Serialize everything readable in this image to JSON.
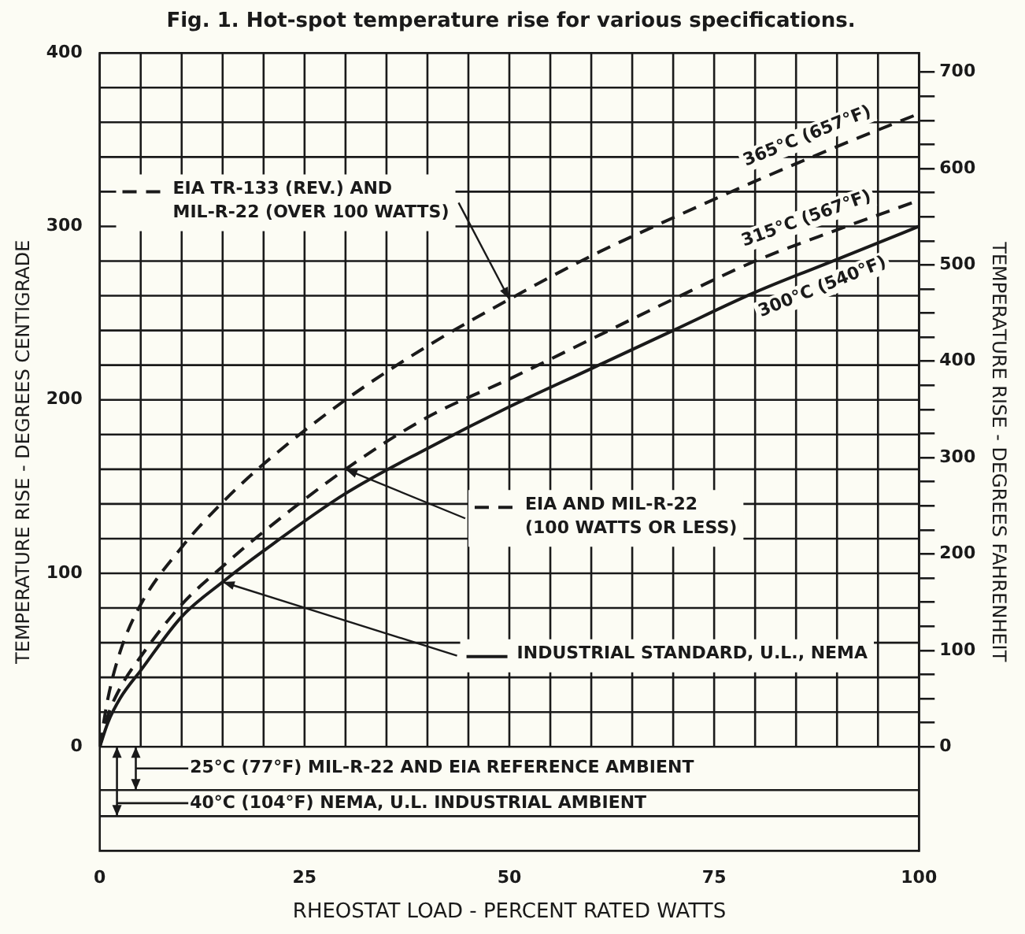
{
  "chart_data": {
    "type": "line",
    "title": "Fig. 1. Hot-spot temperature rise for various specifications.",
    "xlabel": "RHEOSTAT LOAD - PERCENT RATED WATTS",
    "ylabel": "TEMPERATURE RISE - DEGREES CENTIGRADE",
    "y2label": "TEMPERATURE RISE - DEGREES FAHRENHEIT",
    "x": [
      0,
      1,
      2.5,
      5,
      10,
      15,
      20,
      30,
      40,
      50,
      60,
      70,
      80,
      90,
      100
    ],
    "series": [
      {
        "name": "EIA TR-133 (REV.) AND\nMIL-R-22 (OVER 100 WATTS)",
        "color": "#1a1a1a",
        "line_style": "dashed",
        "values": [
          0,
          28,
          55,
          82,
          115,
          141,
          163,
          200,
          231,
          258,
          283,
          305,
          326,
          346,
          365
        ]
      },
      {
        "name": "EIA AND MIL-R-22\n(100 WATTS OR LESS)",
        "color": "#1a1a1a",
        "line_style": "dashed",
        "values": [
          0,
          18,
          34,
          52,
          82,
          104,
          124,
          160,
          190,
          212,
          235,
          258,
          280,
          298,
          315
        ]
      },
      {
        "name": "INDUSTRIAL STANDARD, U.L., NEMA",
        "color": "#1a1a1a",
        "line_style": "solid",
        "values": [
          0,
          14,
          28,
          44,
          75,
          95,
          113,
          146,
          172,
          196,
          218,
          240,
          262,
          281,
          300
        ]
      }
    ],
    "annotations": [
      "365°C (657°F)",
      "315°C (567°F)",
      "300°C (540°F)"
    ],
    "ref_lines": [
      {
        "axis": "y",
        "value": -25,
        "label": "25°C (77°F) MIL-R-22 AND EIA REFERENCE AMBIENT"
      },
      {
        "axis": "y",
        "value": -40,
        "label": "40°C (104°F) NEMA, U.L. INDUSTRIAL AMBIENT"
      }
    ],
    "xlim": [
      0,
      100
    ],
    "xticks": [
      0,
      {
        "value": 5,
        "label": null
      },
      {
        "value": 10,
        "label": null
      },
      {
        "value": 15,
        "label": null
      },
      {
        "value": 20,
        "label": null
      },
      25,
      {
        "value": 30,
        "label": null
      },
      {
        "value": 35,
        "label": null
      },
      {
        "value": 40,
        "label": null
      },
      {
        "value": 45,
        "label": null
      },
      50,
      {
        "value": 55,
        "label": null
      },
      {
        "value": 60,
        "label": null
      },
      {
        "value": 65,
        "label": null
      },
      {
        "value": 70,
        "label": null
      },
      75,
      {
        "value": 80,
        "label": null
      },
      {
        "value": 85,
        "label": null
      },
      {
        "value": 90,
        "label": null
      },
      {
        "value": 95,
        "label": null
      },
      100
    ],
    "ylim": [
      -60,
      400
    ],
    "yticks": [
      0,
      {
        "value": 20,
        "label": null
      },
      {
        "value": 40,
        "label": null
      },
      {
        "value": 60,
        "label": null
      },
      {
        "value": 80,
        "label": null
      },
      100,
      {
        "value": 120,
        "label": null
      },
      {
        "value": 140,
        "label": null
      },
      {
        "value": 160,
        "label": null
      },
      {
        "value": 180,
        "label": null
      },
      200,
      {
        "value": 220,
        "label": null
      },
      {
        "value": 240,
        "label": null
      },
      {
        "value": 260,
        "label": null
      },
      {
        "value": 280,
        "label": null
      },
      300,
      {
        "value": 320,
        "label": null
      },
      {
        "value": 340,
        "label": null
      },
      {
        "value": 360,
        "label": null
      },
      {
        "value": 380,
        "label": null
      },
      400
    ],
    "y2lim": [
      -108,
      720
    ],
    "y2ticks": [
      0,
      {
        "value": 25,
        "label": null
      },
      {
        "value": 50,
        "label": null
      },
      {
        "value": 75,
        "label": null
      },
      100,
      {
        "value": 125,
        "label": null
      },
      {
        "value": 150,
        "label": null
      },
      {
        "value": 175,
        "label": null
      },
      200,
      {
        "value": 225,
        "label": null
      },
      {
        "value": 250,
        "label": null
      },
      {
        "value": 275,
        "label": null
      },
      300,
      {
        "value": 325,
        "label": null
      },
      {
        "value": 350,
        "label": null
      },
      {
        "value": 375,
        "label": null
      },
      400,
      {
        "value": 425,
        "label": null
      },
      {
        "value": 450,
        "label": null
      },
      {
        "value": 475,
        "label": null
      },
      500,
      {
        "value": 525,
        "label": null
      },
      {
        "value": 550,
        "label": null
      },
      {
        "value": 575,
        "label": null
      },
      600,
      {
        "value": 625,
        "label": null
      },
      {
        "value": 650,
        "label": null
      },
      {
        "value": 675,
        "label": null
      },
      700
    ],
    "grid": true,
    "legend": true
  }
}
